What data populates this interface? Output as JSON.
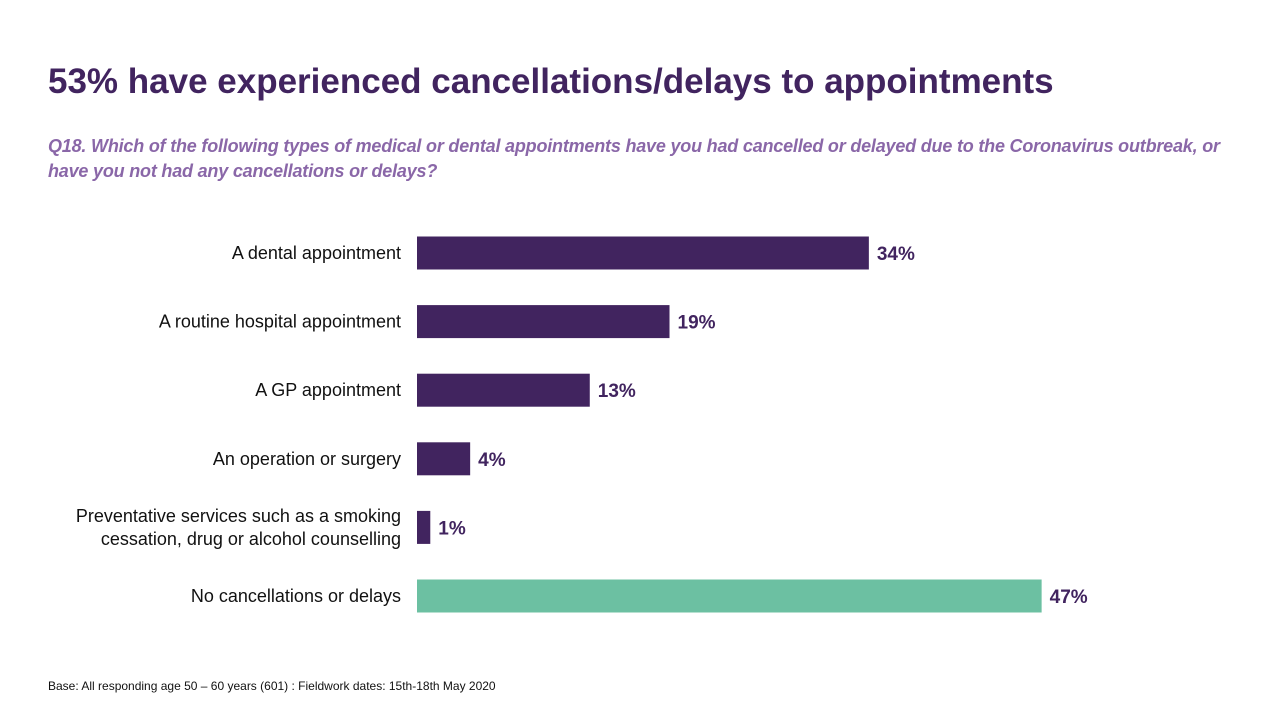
{
  "chart_data": {
    "type": "bar",
    "orientation": "horizontal",
    "title": "53% have experienced cancellations/delays to appointments",
    "subtitle": "Q18. Which of the following types of medical or dental appointments have you had cancelled or delayed due to the Coronavirus outbreak, or have you not had any cancellations or delays?",
    "categories": [
      [
        "A dental appointment"
      ],
      [
        "A routine hospital appointment"
      ],
      [
        "A GP appointment"
      ],
      [
        "An operation or surgery"
      ],
      [
        "Preventative services such as a smoking",
        "cessation, drug or alcohol counselling"
      ],
      [
        "No cancellations or delays"
      ]
    ],
    "values": [
      34,
      19,
      13,
      4,
      1,
      47
    ],
    "value_labels": [
      "34%",
      "19%",
      "13%",
      "4%",
      "1%",
      "47%"
    ],
    "colors": [
      "#41245f",
      "#41245f",
      "#41245f",
      "#41245f",
      "#41245f",
      "#6cc0a2"
    ],
    "label_color": "#41245f",
    "xlim": [
      0,
      50
    ],
    "xlabel": "",
    "ylabel": "",
    "grid": false
  },
  "footnote": "Base: All responding age 50 – 60 years (601) : Fieldwork dates: 15th-18th May 2020"
}
